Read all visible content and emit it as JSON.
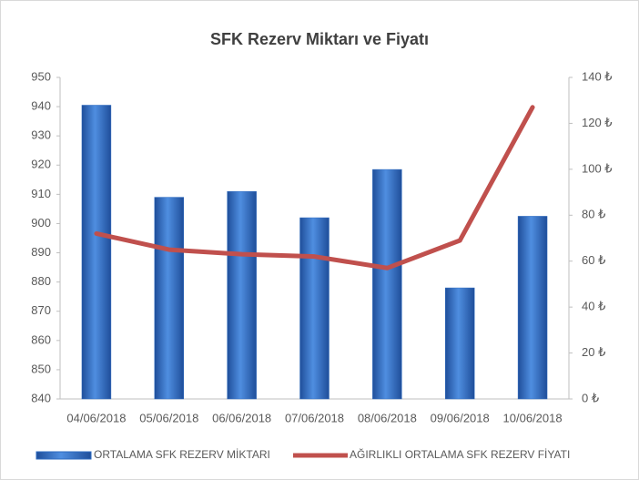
{
  "chart_data": {
    "type": "bar",
    "title": "SFK Rezerv Miktarı ve Fiyatı",
    "categories": [
      "04/06/2018",
      "05/06/2018",
      "06/06/2018",
      "07/06/2018",
      "08/06/2018",
      "09/06/2018",
      "10/06/2018"
    ],
    "series": [
      {
        "name": "ORTALAMA SFK REZERV MİKTARI",
        "type": "bar",
        "color": "#2e6bc0",
        "values": [
          940.5,
          909,
          911,
          902,
          918.5,
          878,
          902.5
        ]
      },
      {
        "name": "AĞIRLIKLI ORTALAMA SFK REZERV FİYATI",
        "type": "line",
        "axis": "y2",
        "color": "#c0504d",
        "values": [
          72,
          65,
          63,
          62,
          57,
          69,
          127
        ]
      }
    ],
    "ylim": [
      840,
      950
    ],
    "yticks": [
      840,
      850,
      860,
      870,
      880,
      890,
      900,
      910,
      920,
      930,
      940,
      950
    ],
    "y2lim": [
      0,
      140
    ],
    "y2ticks": [
      {
        "value": 0,
        "label": "0 ₺"
      },
      {
        "value": 20,
        "label": "20 ₺"
      },
      {
        "value": 40,
        "label": "40 ₺"
      },
      {
        "value": 60,
        "label": "60 ₺"
      },
      {
        "value": 80,
        "label": "80 ₺"
      },
      {
        "value": 100,
        "label": "100 ₺"
      },
      {
        "value": 120,
        "label": "120 ₺"
      },
      {
        "value": 140,
        "label": "140 ₺"
      }
    ],
    "legend": "bottom"
  }
}
